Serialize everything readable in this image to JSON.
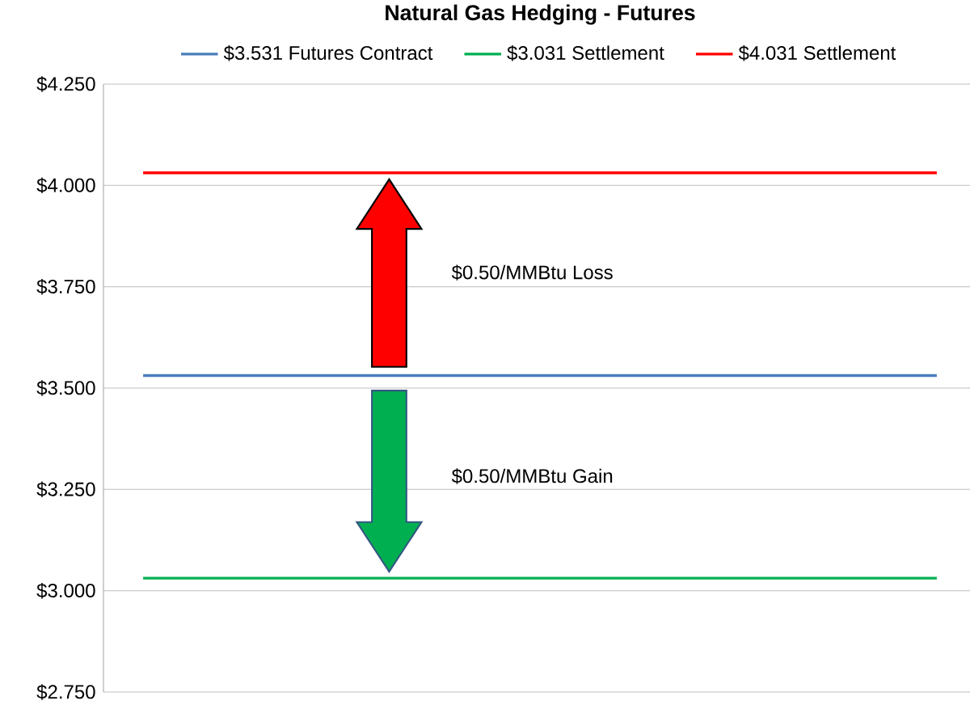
{
  "chart_data": {
    "type": "line",
    "title": "Natural Gas Hedging - Futures",
    "categories": [
      null,
      null,
      null,
      null,
      null,
      null,
      null,
      null,
      null,
      null
    ],
    "series": [
      {
        "name": "$3.531 Futures Contract",
        "color": "#4a7ebb",
        "values": [
          3.531,
          3.531,
          3.531,
          3.531,
          3.531,
          3.531,
          3.531,
          3.531,
          3.531,
          3.531
        ]
      },
      {
        "name": "$3.031 Settlement",
        "color": "#00b050",
        "values": [
          3.031,
          3.031,
          3.031,
          3.031,
          3.031,
          3.031,
          3.031,
          3.031,
          3.031,
          3.031
        ]
      },
      {
        "name": "$4.031 Settlement",
        "color": "#ff0000",
        "values": [
          4.031,
          4.031,
          4.031,
          4.031,
          4.031,
          4.031,
          4.031,
          4.031,
          4.031,
          4.031
        ]
      }
    ],
    "ylim": [
      2.75,
      4.25
    ],
    "yticks": [
      {
        "value": 2.75,
        "label": "$2.750"
      },
      {
        "value": 3.0,
        "label": "$3.000"
      },
      {
        "value": 3.25,
        "label": "$3.250"
      },
      {
        "value": 3.5,
        "label": "$3.500"
      },
      {
        "value": 3.75,
        "label": "$3.750"
      },
      {
        "value": 4.0,
        "label": "$4.000"
      },
      {
        "value": 4.25,
        "label": "$4.250"
      }
    ],
    "annotations": [
      "$0.50/MMBtu Loss",
      "$0.50/MMBtu Gain"
    ],
    "grid": "y",
    "legend": "top",
    "marker": "none",
    "line_style": "solid"
  }
}
